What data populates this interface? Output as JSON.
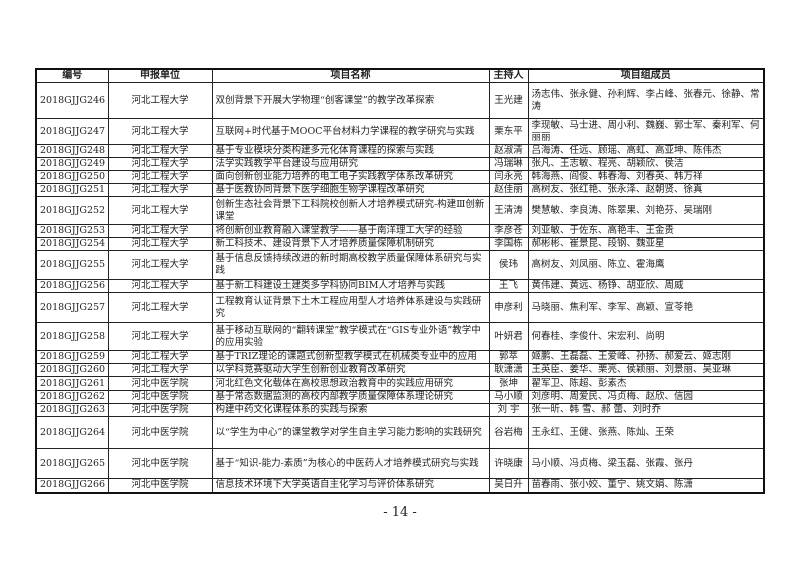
{
  "headers": [
    "编号",
    "申报单位",
    "项目名称",
    "主持人",
    "项目组成员"
  ],
  "rows": [
    {
      "id": "2018GJJG246",
      "unit": "河北工程大学",
      "name": "双创背景下开展大学物理“创客课堂”的教学改革探索",
      "host": "王光建",
      "members": "汤志伟、张永健、孙利辉、李占峰、张春元、徐静、常涛"
    },
    {
      "id": "2018GJJG247",
      "unit": "河北工程大学",
      "name": "互联网+时代基于MOOC平台材料力学课程的教学研究与实践",
      "host": "栗东平",
      "members": "李现敏、马士进、周小利、魏巍、郭士军、秦利军、何丽丽"
    },
    {
      "id": "2018GJJG248",
      "unit": "河北工程大学",
      "name": "基于专业模块分类构建多元化体育课程的探索与实践",
      "host": "赵淑清",
      "members": "吕海涛、任远、顾瑶、高虹、高亚坤、陈伟杰"
    },
    {
      "id": "2018GJJG249",
      "unit": "河北工程大学",
      "name": "法学实践教学平台建设与应用研究",
      "host": "冯瑞琳",
      "members": "张凡、王志敏、程亮、胡颖欣、侯洁"
    },
    {
      "id": "2018GJJG250",
      "unit": "河北工程大学",
      "name": "面向创新创业能力培养的电工电子实践教学体系改革研究",
      "host": "闫永亮",
      "members": "韩海燕、阎俊、韩春海、刘春英、韩万祥"
    },
    {
      "id": "2018GJJG251",
      "unit": "河北工程大学",
      "name": "基于医教协同背景下医学细胞生物学课程改革研究",
      "host": "赵佳丽",
      "members": "高树友、张红艳、张永泽、赵朝贤、徐真"
    },
    {
      "id": "2018GJJG252",
      "unit": "河北工程大学",
      "name": "创新生态社会背景下工科院校创新人才培养模式研究-构建Ⅲ创新课堂",
      "host": "王清涛",
      "members": "樊慧敏、李良涛、陈翠果、刘艳芬、吴瑞刚"
    },
    {
      "id": "2018GJJG253",
      "unit": "河北工程大学",
      "name": "将创新创业教育融入课堂教学——基于南洋理工大学的经验",
      "host": "李彦苍",
      "members": "刘亚敏、于佐东、高艳丰、王金贵"
    },
    {
      "id": "2018GJJG254",
      "unit": "河北工程大学",
      "name": "新工科技术、建设背景下人才培养质量保障机制研究",
      "host": "李国栋",
      "members": "郝彬彬、崔景昆、段钢、魏亚星"
    },
    {
      "id": "2018GJJG255",
      "unit": "河北工程大学",
      "name": "基于信息反馈持续改进的新时期高校教学质量保障体系研究与实践",
      "host": "侯玮",
      "members": "高树友、刘凤丽、陈立、霍海鹰"
    },
    {
      "id": "2018GJJG256",
      "unit": "河北工程大学",
      "name": "基于新工科建设土建类多学科协同BIM人才培养与实践",
      "host": "王飞",
      "members": "黄伟建、黄远、杨铮、胡亚欣、周威"
    },
    {
      "id": "2018GJJG257",
      "unit": "河北工程大学",
      "name": "工程教育认证背景下土木工程应用型人才培养体系建设与实践研究",
      "host": "申彦利",
      "members": "马晓丽、焦利军、李军、高颖、宣苓艳"
    },
    {
      "id": "2018GJJG258",
      "unit": "河北工程大学",
      "name": "基于移动互联网的“翻转课堂”教学模式在“GIS专业外语”教学中的应用实验",
      "host": "叶妍君",
      "members": "何春桂、李俊什、宋宏利、尚明"
    },
    {
      "id": "2018GJJG259",
      "unit": "河北工程大学",
      "name": "基于TRIZ理论的课题式创新型教学模式在机械类专业中的应用",
      "host": "郭萃",
      "members": "姬鹏、王磊磊、王爱峰、孙扬、郝爱云、姬志刚"
    },
    {
      "id": "2018GJJG260",
      "unit": "河北工程大学",
      "name": "以学科竞赛驱动大学生创新创业教育改革研究",
      "host": "耿潇潇",
      "members": "王英臣、姜华、栗亮、侯颖丽、刘景丽、吴亚琳"
    },
    {
      "id": "2018GJJG261",
      "unit": "河北中医学院",
      "name": "河北红色文化载体在高校思想政治教育中的实践应用研究",
      "host": "张坤",
      "members": "翟军卫、陈超、彭素杰"
    },
    {
      "id": "2018GJJG262",
      "unit": "河北中医学院",
      "name": "基于常态数据监测的高校内部教学质量保障体系理论研究",
      "host": "马小顺",
      "members": "刘彦明、周爱民、冯贞梅、赵欣、信园"
    },
    {
      "id": "2018GJJG263",
      "unit": "河北中医学院",
      "name": "构建中药文化课程体系的实践与探索",
      "host": "刘 宇",
      "members": "张一昕、韩 雪、郝 蕾、刘时乔"
    },
    {
      "id": "2018GJJG264",
      "unit": "河北中医学院",
      "name": "以“学生为中心”的课堂教学对学生自主学习能力影响的实践研究",
      "host": "谷岩梅",
      "members": "王永红、王健、张燕、陈灿、王荣"
    },
    {
      "id": "2018GJJG265",
      "unit": "河北中医学院",
      "name": "基于“知识-能力-素质”为核心的中医药人才培养模式研究与实践",
      "host": "许晓康",
      "members": "马小顺、冯贞梅、梁玉磊、张霞、张丹"
    },
    {
      "id": "2018GJJG266",
      "unit": "河北中医学院",
      "name": "信息技术环境下大学英语自主化学习与评价体系研究",
      "host": "吴日升",
      "members": "苗春雨、张小姣、董宁、姚文娟、陈潇"
    }
  ],
  "page_number": "- 14 -"
}
